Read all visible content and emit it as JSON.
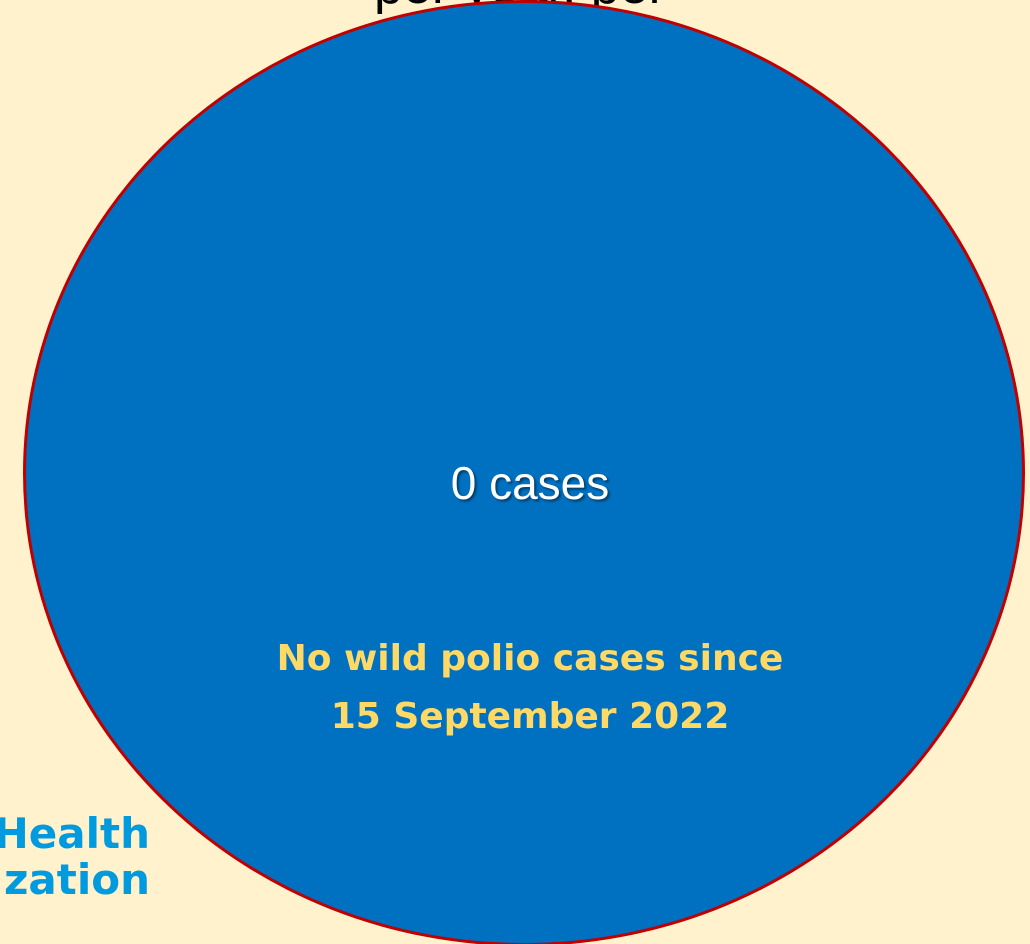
{
  "slide": {
    "top_title": "per year, per",
    "main_value": "0 cases",
    "subtitle_line1": "No wild polio cases since",
    "subtitle_line2": "15 September 2022",
    "logo_line1": "Health",
    "logo_line2": "zation"
  },
  "colors": {
    "background": "#fff2cc",
    "circle_fill": "#0070c0",
    "circle_border": "#c00000",
    "main_value_text": "#ffffff",
    "subtitle_text": "#ffd966",
    "logo_text": "#009ade"
  }
}
